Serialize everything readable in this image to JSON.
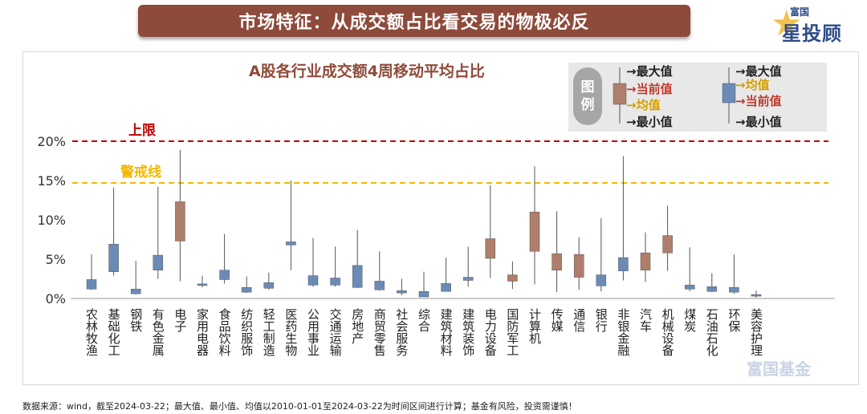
{
  "header": {
    "title": "市场特征：从成交额占比看交易的物极必反"
  },
  "logo": {
    "small": "富国",
    "big": "星投顾"
  },
  "watermark": "富国基金",
  "footnote": "数据来源：wind，截至2024-03-22；最大值、最小值、均值以2010-01-01至2024-03-22为时间区间进行计算；基金有风险，投资需谨慎！",
  "legend": {
    "badge_top": "图",
    "badge_bottom": "例",
    "a": {
      "max": "→最大值",
      "current": "→当前值",
      "mean": "→均值",
      "min": "→最小值"
    },
    "b": {
      "max": "→最大值",
      "mean": "→均值",
      "current": "→当前值",
      "min": "→最小值"
    }
  },
  "colors": {
    "up": "#b07e6c",
    "down": "#6b8bb6",
    "upper_line": "#c00000",
    "warn_line": "#f5b700",
    "title": "#8e4a3a"
  },
  "chart_data": {
    "type": "boxplot",
    "title": "A股各行业成交额4周移动平均占比",
    "ylim": [
      0,
      20
    ],
    "yticks": [
      "0%",
      "5%",
      "10%",
      "15%",
      "20%"
    ],
    "reference_lines": [
      {
        "label": "上限",
        "value": 20,
        "color": "#c00000"
      },
      {
        "label": "警戒线",
        "value": 14.7,
        "color": "#f5b700"
      }
    ],
    "categories": [
      "农林牧渔",
      "基础化工",
      "钢铁",
      "有色金属",
      "电子",
      "家用电器",
      "食品饮料",
      "纺织服饰",
      "轻工制造",
      "医药生物",
      "公用事业",
      "交通运输",
      "房地产",
      "商贸零售",
      "社会服务",
      "综合",
      "建筑材料",
      "建筑装饰",
      "电力设备",
      "国防军工",
      "计算机",
      "传媒",
      "通信",
      "银行",
      "非银金融",
      "汽车",
      "机械设备",
      "煤炭",
      "石油石化",
      "环保",
      "美容护理"
    ],
    "series": [
      {
        "min": 1.1,
        "max": 5.6,
        "low": 1.2,
        "high": 2.4,
        "up": false
      },
      {
        "min": 2.9,
        "max": 14.1,
        "low": 3.4,
        "high": 6.9,
        "up": false
      },
      {
        "min": 0.5,
        "max": 4.8,
        "low": 0.6,
        "high": 1.2,
        "up": false
      },
      {
        "min": 2.5,
        "max": 14.2,
        "low": 3.6,
        "high": 5.5,
        "up": false
      },
      {
        "min": 2.2,
        "max": 18.9,
        "low": 7.3,
        "high": 12.3,
        "up": true
      },
      {
        "min": 1.4,
        "max": 2.9,
        "low": 1.75,
        "high": 1.85,
        "up": false
      },
      {
        "min": 1.9,
        "max": 8.2,
        "low": 2.4,
        "high": 3.6,
        "up": false
      },
      {
        "min": 0.7,
        "max": 2.8,
        "low": 0.8,
        "high": 1.4,
        "up": false
      },
      {
        "min": 1.1,
        "max": 3.3,
        "low": 1.3,
        "high": 2.0,
        "up": false
      },
      {
        "min": 3.6,
        "max": 15.0,
        "low": 6.8,
        "high": 7.2,
        "up": false
      },
      {
        "min": 1.5,
        "max": 7.7,
        "low": 1.7,
        "high": 2.9,
        "up": false
      },
      {
        "min": 1.5,
        "max": 6.6,
        "low": 1.7,
        "high": 2.6,
        "up": false
      },
      {
        "min": 1.3,
        "max": 8.7,
        "low": 1.4,
        "high": 4.2,
        "up": false
      },
      {
        "min": 1.0,
        "max": 6.0,
        "low": 1.1,
        "high": 2.2,
        "up": false
      },
      {
        "min": 0.4,
        "max": 2.5,
        "low": 0.7,
        "high": 1.0,
        "up": false
      },
      {
        "min": 0.2,
        "max": 3.4,
        "low": 0.2,
        "high": 0.9,
        "up": false
      },
      {
        "min": 0.9,
        "max": 5.2,
        "low": 0.9,
        "high": 1.9,
        "up": false
      },
      {
        "min": 1.5,
        "max": 6.6,
        "low": 2.3,
        "high": 2.7,
        "up": false
      },
      {
        "min": 2.6,
        "max": 14.4,
        "low": 5.1,
        "high": 7.6,
        "up": true
      },
      {
        "min": 1.2,
        "max": 4.7,
        "low": 2.2,
        "high": 3.0,
        "up": true
      },
      {
        "min": 1.8,
        "max": 16.8,
        "low": 6.0,
        "high": 11.0,
        "up": true
      },
      {
        "min": 0.8,
        "max": 11.1,
        "low": 3.6,
        "high": 5.7,
        "up": true
      },
      {
        "min": 1.1,
        "max": 7.8,
        "low": 2.7,
        "high": 5.6,
        "up": true
      },
      {
        "min": 0.9,
        "max": 10.2,
        "low": 1.6,
        "high": 3.0,
        "up": false
      },
      {
        "min": 2.3,
        "max": 18.1,
        "low": 3.5,
        "high": 5.2,
        "up": false
      },
      {
        "min": 2.1,
        "max": 8.4,
        "low": 3.6,
        "high": 5.8,
        "up": true
      },
      {
        "min": 3.5,
        "max": 11.8,
        "low": 5.8,
        "high": 8.0,
        "up": true
      },
      {
        "min": 0.9,
        "max": 6.5,
        "low": 1.2,
        "high": 1.7,
        "up": false
      },
      {
        "min": 0.8,
        "max": 3.2,
        "low": 0.9,
        "high": 1.5,
        "up": false
      },
      {
        "min": 0.6,
        "max": 5.6,
        "low": 0.8,
        "high": 1.4,
        "up": false
      },
      {
        "min": 0.1,
        "max": 1.0,
        "low": 0.4,
        "high": 0.5,
        "up": false
      }
    ]
  }
}
